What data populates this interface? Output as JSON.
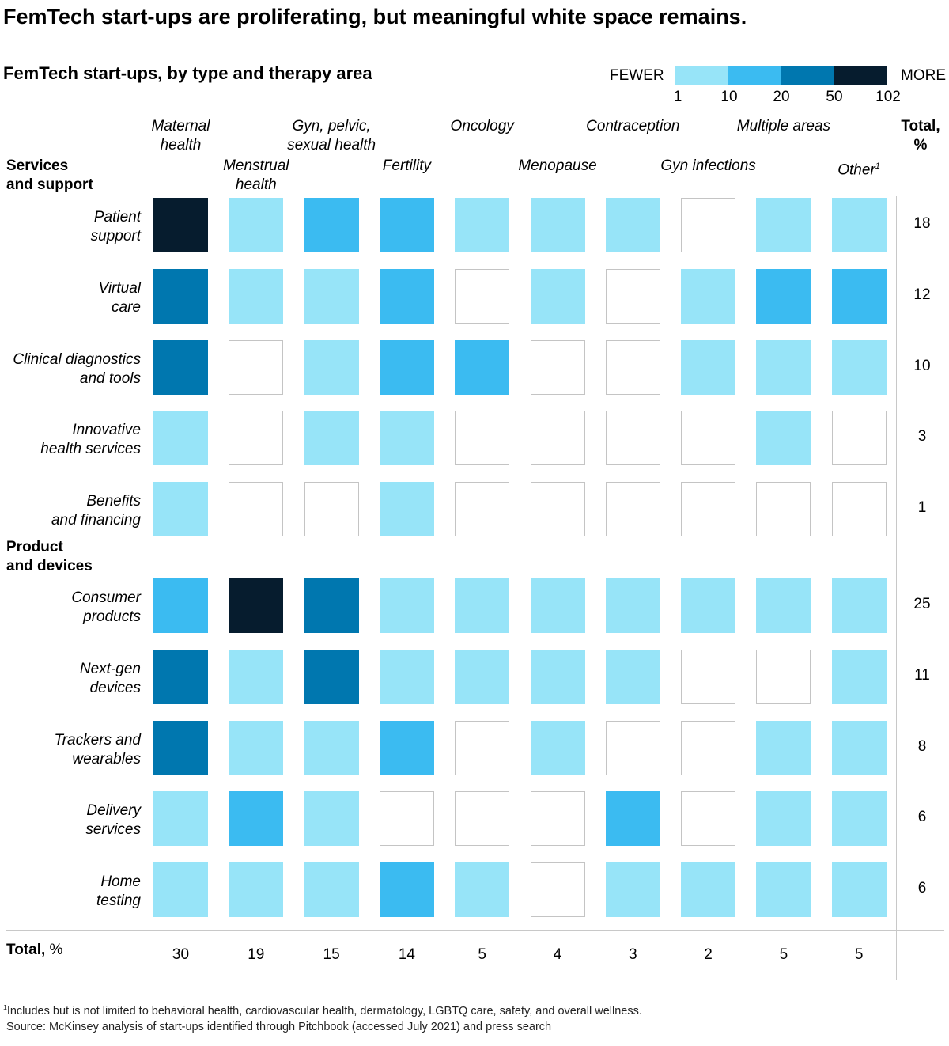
{
  "title": "FemTech start-ups are proliferating, but meaningful white space remains.",
  "subtitle": "FemTech start-ups, by type and therapy area",
  "legend": {
    "fewer_label": "FEWER",
    "more_label": "MORE",
    "ticks": [
      "1",
      "10",
      "20",
      "50",
      "102"
    ],
    "colors": [
      "#97e4f8",
      "#3bbbf1",
      "#0077af",
      "#061c2e"
    ]
  },
  "colors": {
    "empty": "#ffffff",
    "light": "#97e4f8",
    "mid": "#3bbbf1",
    "dark": "#0077af",
    "darkest": "#061c2e"
  },
  "total_header": {
    "line1": "Total,",
    "line2": "%"
  },
  "footnotes": {
    "note1_marker": "1",
    "note1": "Includes but is not limited to behavioral health, cardiovascular health, dermatology, LGBTQ care, safety, and overall wellness.",
    "source": "Source: McKinsey analysis of start-ups identified through Pitchbook (accessed July 2021) and press search"
  },
  "chart_data": {
    "type": "heatmap",
    "title": "FemTech start-ups, by type and therapy area",
    "scale": "number of start-ups; 0 = none, 1 = 1–10, 2 = 10–20, 3 = 20–50, 4 = 50–102",
    "columns": [
      {
        "line1": "Maternal",
        "line2": "health",
        "total": "30"
      },
      {
        "line1": "Menstrual",
        "line2": "health",
        "total": "19"
      },
      {
        "line1": "Gyn, pelvic,",
        "line2": "sexual health",
        "total": "15"
      },
      {
        "line1": "Fertility",
        "line2": "",
        "total": "14"
      },
      {
        "line1": "Oncology",
        "line2": "",
        "total": "5"
      },
      {
        "line1": "Menopause",
        "line2": "",
        "total": "4"
      },
      {
        "line1": "Contraception",
        "line2": "",
        "total": "3"
      },
      {
        "line1": "Gyn infections",
        "line2": "",
        "total": "2"
      },
      {
        "line1": "Multiple areas",
        "line2": "",
        "total": "5"
      },
      {
        "line1": "Other",
        "line2": "",
        "total": "5",
        "marker": "1"
      }
    ],
    "sections": [
      {
        "line1": "Services",
        "line2": "and support",
        "rows": [
          {
            "line1": "Patient",
            "line2": "support",
            "total": "18",
            "values": [
              4,
              1,
              2,
              2,
              1,
              1,
              1,
              0,
              1,
              1
            ]
          },
          {
            "line1": "Virtual",
            "line2": "care",
            "total": "12",
            "values": [
              3,
              1,
              1,
              2,
              0,
              1,
              0,
              1,
              2,
              2
            ]
          },
          {
            "line1": "Clinical diagnostics",
            "line2": "and tools",
            "total": "10",
            "values": [
              3,
              0,
              1,
              2,
              2,
              0,
              0,
              1,
              1,
              1
            ]
          },
          {
            "line1": "Innovative",
            "line2": "health services",
            "total": "3",
            "values": [
              1,
              0,
              1,
              1,
              0,
              0,
              0,
              0,
              1,
              0
            ]
          },
          {
            "line1": "Benefits",
            "line2": "and financing",
            "total": "1",
            "values": [
              1,
              0,
              0,
              1,
              0,
              0,
              0,
              0,
              0,
              0
            ]
          }
        ]
      },
      {
        "line1": "Product",
        "line2": "and devices",
        "rows": [
          {
            "line1": "Consumer",
            "line2": "products",
            "total": "25",
            "values": [
              2,
              4,
              3,
              1,
              1,
              1,
              1,
              1,
              1,
              1
            ]
          },
          {
            "line1": "Next-gen",
            "line2": "devices",
            "total": "11",
            "values": [
              3,
              1,
              3,
              1,
              1,
              1,
              1,
              0,
              0,
              1
            ]
          },
          {
            "line1": "Trackers and",
            "line2": "wearables",
            "total": "8",
            "values": [
              3,
              1,
              1,
              2,
              0,
              1,
              0,
              0,
              1,
              1
            ]
          },
          {
            "line1": "Delivery",
            "line2": "services",
            "total": "6",
            "values": [
              1,
              2,
              1,
              0,
              0,
              0,
              2,
              0,
              1,
              1
            ]
          },
          {
            "line1": "Home",
            "line2": "testing",
            "total": "6",
            "values": [
              1,
              1,
              1,
              2,
              1,
              0,
              1,
              1,
              1,
              1
            ]
          }
        ]
      }
    ],
    "total_row_label": "Total,",
    "total_row_unit": " %"
  }
}
